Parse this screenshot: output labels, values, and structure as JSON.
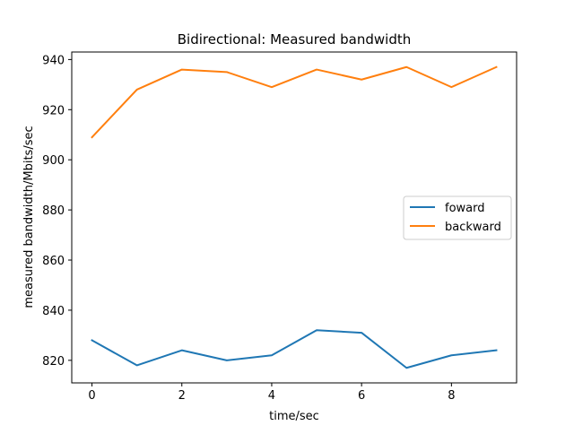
{
  "chart_data": {
    "type": "line",
    "title": "Bidirectional: Measured bandwidth",
    "xlabel": "time/sec",
    "ylabel": "measured bandwidth/Mbits/sec",
    "x": [
      0,
      1,
      2,
      3,
      4,
      5,
      6,
      7,
      8,
      9
    ],
    "xlim": [
      -0.45,
      9.45
    ],
    "ylim": [
      811.0,
      943.0
    ],
    "xticks": [
      0,
      2,
      4,
      6,
      8
    ],
    "yticks": [
      820,
      840,
      860,
      880,
      900,
      920,
      940
    ],
    "grid": false,
    "legend_position": "center-right",
    "series": [
      {
        "name": "foward",
        "color": "#1f77b4",
        "values": [
          828,
          818,
          824,
          820,
          822,
          832,
          831,
          817,
          822,
          824
        ]
      },
      {
        "name": "backward",
        "color": "#ff7f0e",
        "values": [
          909,
          928,
          936,
          935,
          929,
          936,
          932,
          937,
          929,
          937
        ]
      }
    ]
  }
}
